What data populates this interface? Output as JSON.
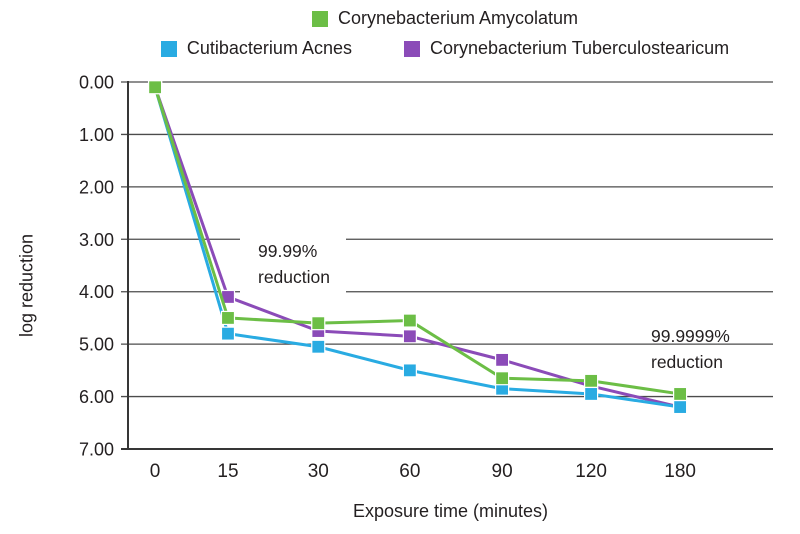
{
  "chart_data": {
    "type": "line",
    "title": "",
    "xlabel": "Exposure time (minutes)",
    "ylabel": "log reduction",
    "categories": [
      "0",
      "15",
      "30",
      "60",
      "90",
      "120",
      "180"
    ],
    "y_ticks": [
      "0.00",
      "1.00",
      "2.00",
      "3.00",
      "4.00",
      "5.00",
      "6.00",
      "7.00"
    ],
    "ylim": [
      0,
      7
    ],
    "y_axis_inverted": true,
    "grid": "horizontal",
    "legend_position": "top",
    "marker": "square",
    "series": [
      {
        "name": "Corynebacterium Amycolatum",
        "color": "#6CBE46",
        "values": [
          0.1,
          4.5,
          4.6,
          4.55,
          5.65,
          5.7,
          5.95
        ]
      },
      {
        "name": "Cutibacterium Acnes",
        "color": "#29ABE2",
        "values": [
          0.1,
          4.8,
          5.05,
          5.5,
          5.85,
          5.95,
          6.2
        ]
      },
      {
        "name": "Corynebacterium Tuberculostearicum",
        "color": "#8B4BB8",
        "values": [
          0.1,
          4.1,
          4.75,
          4.85,
          5.3,
          5.8,
          6.2
        ]
      }
    ],
    "annotations": [
      {
        "line1": "99.99%",
        "line2": "reduction",
        "near_x": "30",
        "near_y": 3.3
      },
      {
        "line1": "99.9999%",
        "line2": "reduction",
        "near_x": "180",
        "near_y": 4.7
      }
    ]
  }
}
